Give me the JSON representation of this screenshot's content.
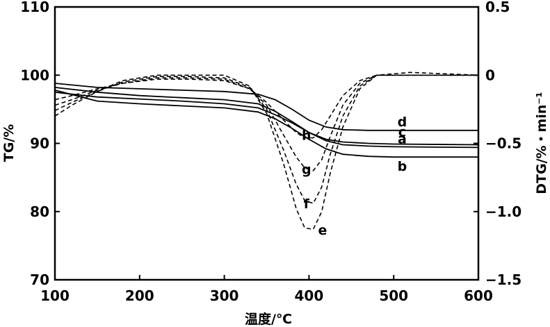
{
  "chart_data": {
    "type": "line",
    "xlabel": "温度/℃",
    "ylabel_left": "TG/%",
    "ylabel_right": "DTG/%・min⁻¹",
    "xlim": [
      100,
      600
    ],
    "ylim_left": [
      70,
      110
    ],
    "ylim_right": [
      -1.5,
      0.5
    ],
    "x_ticks": [
      100,
      200,
      300,
      400,
      500,
      600
    ],
    "y_left_ticks": [
      70,
      80,
      90,
      100,
      110
    ],
    "y_right_ticks": [
      "0.5",
      "0",
      "−0.5",
      "−1.0",
      "−1.5"
    ],
    "y_right_tick_values": [
      0.5,
      0,
      -0.5,
      -1.0,
      -1.5
    ],
    "grid": false,
    "tg_series": [
      {
        "name": "a",
        "axis": "left",
        "style": "solid",
        "points": [
          [
            100,
            97.5
          ],
          [
            150,
            96.8
          ],
          [
            200,
            96.5
          ],
          [
            250,
            96.2
          ],
          [
            300,
            95.8
          ],
          [
            340,
            95.2
          ],
          [
            360,
            94.2
          ],
          [
            380,
            93.0
          ],
          [
            400,
            91.6
          ],
          [
            420,
            90.6
          ],
          [
            440,
            90.2
          ],
          [
            470,
            90.0
          ],
          [
            500,
            89.9
          ],
          [
            600,
            89.8
          ]
        ]
      },
      {
        "name": "b",
        "axis": "left",
        "style": "solid",
        "points": [
          [
            100,
            97.8
          ],
          [
            150,
            96.2
          ],
          [
            200,
            95.8
          ],
          [
            250,
            95.5
          ],
          [
            300,
            95.2
          ],
          [
            340,
            94.6
          ],
          [
            360,
            93.6
          ],
          [
            380,
            92.2
          ],
          [
            400,
            90.6
          ],
          [
            420,
            89.2
          ],
          [
            440,
            88.4
          ],
          [
            470,
            88.1
          ],
          [
            500,
            88.0
          ],
          [
            600,
            88.0
          ]
        ]
      },
      {
        "name": "c",
        "axis": "left",
        "style": "solid",
        "points": [
          [
            100,
            98.2
          ],
          [
            150,
            97.5
          ],
          [
            200,
            97.0
          ],
          [
            250,
            96.7
          ],
          [
            300,
            96.4
          ],
          [
            340,
            95.8
          ],
          [
            360,
            94.7
          ],
          [
            380,
            93.2
          ],
          [
            400,
            91.6
          ],
          [
            420,
            90.4
          ],
          [
            440,
            89.8
          ],
          [
            470,
            89.6
          ],
          [
            500,
            89.5
          ],
          [
            600,
            89.4
          ]
        ]
      },
      {
        "name": "d",
        "axis": "left",
        "style": "solid",
        "points": [
          [
            100,
            98.8
          ],
          [
            150,
            98.2
          ],
          [
            200,
            98.0
          ],
          [
            250,
            97.8
          ],
          [
            300,
            97.6
          ],
          [
            340,
            97.2
          ],
          [
            360,
            96.4
          ],
          [
            380,
            95.0
          ],
          [
            400,
            93.4
          ],
          [
            420,
            92.4
          ],
          [
            440,
            92.0
          ],
          [
            470,
            91.9
          ],
          [
            500,
            91.9
          ],
          [
            600,
            91.9
          ]
        ]
      }
    ],
    "dtg_series": [
      {
        "name": "e",
        "axis": "right",
        "style": "dashed",
        "points": [
          [
            100,
            -0.3
          ],
          [
            120,
            -0.22
          ],
          [
            150,
            -0.12
          ],
          [
            180,
            -0.04
          ],
          [
            220,
            0.0
          ],
          [
            260,
            0.0
          ],
          [
            300,
            0.0
          ],
          [
            330,
            -0.08
          ],
          [
            350,
            -0.28
          ],
          [
            370,
            -0.65
          ],
          [
            385,
            -0.98
          ],
          [
            395,
            -1.12
          ],
          [
            405,
            -1.13
          ],
          [
            415,
            -1.0
          ],
          [
            425,
            -0.72
          ],
          [
            440,
            -0.38
          ],
          [
            460,
            -0.1
          ],
          [
            480,
            0.0
          ],
          [
            520,
            0.02
          ],
          [
            600,
            0.0
          ]
        ]
      },
      {
        "name": "f",
        "axis": "right",
        "style": "dashed",
        "points": [
          [
            100,
            -0.26
          ],
          [
            120,
            -0.2
          ],
          [
            150,
            -0.12
          ],
          [
            180,
            -0.05
          ],
          [
            220,
            -0.01
          ],
          [
            260,
            -0.01
          ],
          [
            300,
            -0.02
          ],
          [
            330,
            -0.09
          ],
          [
            350,
            -0.25
          ],
          [
            370,
            -0.55
          ],
          [
            385,
            -0.8
          ],
          [
            395,
            -0.92
          ],
          [
            405,
            -0.94
          ],
          [
            415,
            -0.82
          ],
          [
            425,
            -0.58
          ],
          [
            440,
            -0.3
          ],
          [
            460,
            -0.08
          ],
          [
            480,
            0.0
          ],
          [
            600,
            0.0
          ]
        ]
      },
      {
        "name": "g",
        "axis": "right",
        "style": "dashed",
        "points": [
          [
            100,
            -0.22
          ],
          [
            120,
            -0.18
          ],
          [
            150,
            -0.11
          ],
          [
            180,
            -0.06
          ],
          [
            220,
            -0.02
          ],
          [
            260,
            -0.02
          ],
          [
            300,
            -0.03
          ],
          [
            330,
            -0.1
          ],
          [
            350,
            -0.22
          ],
          [
            370,
            -0.44
          ],
          [
            385,
            -0.6
          ],
          [
            395,
            -0.68
          ],
          [
            405,
            -0.7
          ],
          [
            415,
            -0.62
          ],
          [
            425,
            -0.45
          ],
          [
            440,
            -0.22
          ],
          [
            460,
            -0.06
          ],
          [
            480,
            0.0
          ],
          [
            600,
            0.0
          ]
        ]
      },
      {
        "name": "h",
        "axis": "right",
        "style": "dashed",
        "points": [
          [
            100,
            -0.18
          ],
          [
            120,
            -0.15
          ],
          [
            150,
            -0.1
          ],
          [
            180,
            -0.06
          ],
          [
            220,
            -0.03
          ],
          [
            260,
            -0.03
          ],
          [
            300,
            -0.04
          ],
          [
            330,
            -0.1
          ],
          [
            350,
            -0.2
          ],
          [
            370,
            -0.33
          ],
          [
            385,
            -0.42
          ],
          [
            395,
            -0.46
          ],
          [
            405,
            -0.46
          ],
          [
            415,
            -0.4
          ],
          [
            425,
            -0.3
          ],
          [
            440,
            -0.15
          ],
          [
            460,
            -0.04
          ],
          [
            480,
            0.0
          ],
          [
            600,
            0.0
          ]
        ]
      }
    ],
    "series_labels": [
      {
        "text": "d",
        "x": 510,
        "y_left": 92.5
      },
      {
        "text": "c",
        "x": 510,
        "y_left": 91.0
      },
      {
        "text": "a",
        "x": 510,
        "y_left": 90.0
      },
      {
        "text": "b",
        "x": 510,
        "y_left": 86.0
      },
      {
        "text": "h",
        "x": 397,
        "y_left": 90.5
      },
      {
        "text": "g",
        "x": 397,
        "y_left": 85.5
      },
      {
        "text": "f",
        "x": 397,
        "y_left": 80.5
      },
      {
        "text": "e",
        "x": 416,
        "y_left": 76.6
      }
    ]
  }
}
